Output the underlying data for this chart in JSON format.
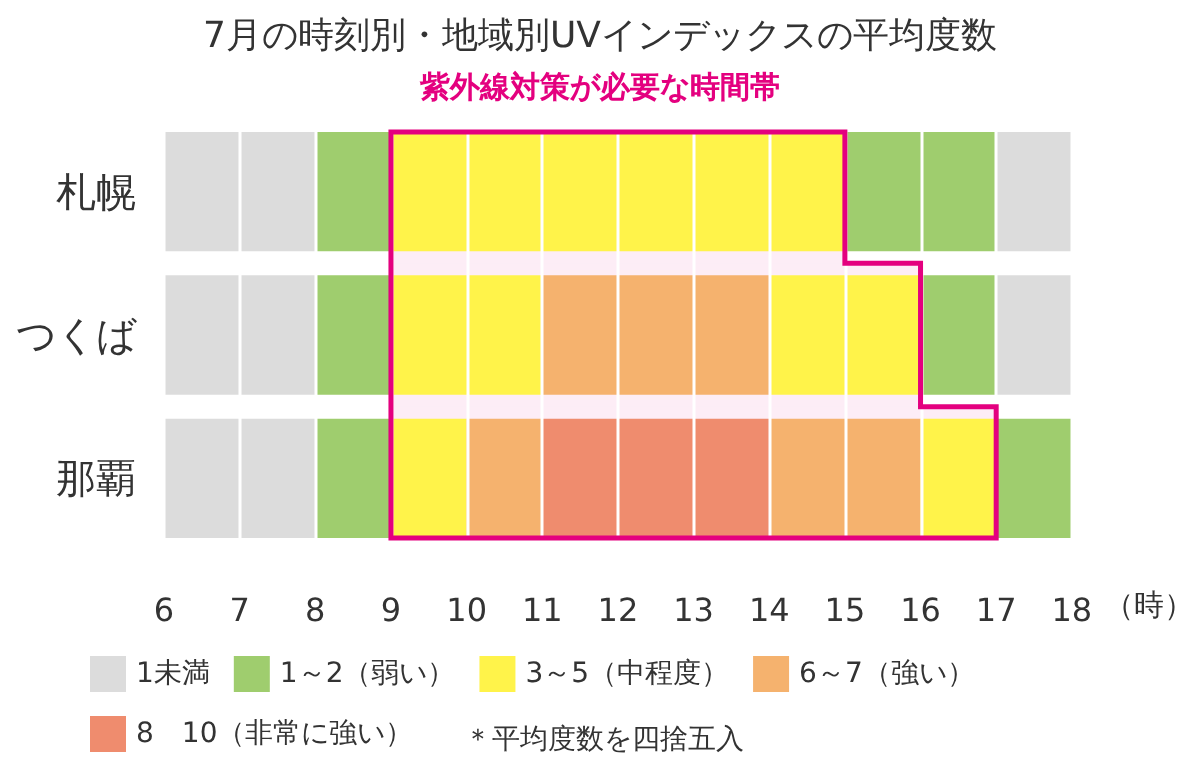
{
  "chart_data": {
    "type": "bar",
    "orientation": "horizontal",
    "title": "7月の時刻別・地域別UVインデックスの平均度数",
    "xlim": [
      6,
      18
    ],
    "xticks": [
      6,
      7,
      8,
      9,
      10,
      11,
      12,
      13,
      14,
      15,
      16,
      17,
      18
    ],
    "xlabel": "（時）",
    "categories": [
      "札幌",
      "つくば",
      "那覇"
    ],
    "series": [
      {
        "name": "1未満",
        "color": "#dcdcdc",
        "base": [
          6,
          6,
          6
        ],
        "values": [
          2,
          2,
          2
        ]
      },
      {
        "name": "1～2（弱い）",
        "color": "#9fcd6e",
        "base": [
          8,
          8,
          8
        ],
        "values": [
          1,
          1,
          1
        ]
      },
      {
        "name": "3～5（中程度）",
        "color": "#fff34a",
        "base": [
          9,
          9,
          9
        ],
        "values": [
          6,
          2,
          1
        ]
      },
      {
        "name": "6～7（強い）",
        "color": "#f5b26e",
        "base": [
          null,
          11,
          10
        ],
        "values": [
          null,
          3,
          1
        ]
      },
      {
        "name": "8　10（非常に強い）",
        "color": "#ef8c6e",
        "base": [
          null,
          null,
          11
        ],
        "values": [
          null,
          null,
          3
        ]
      },
      {
        "color": "#f5b26e",
        "base": [
          null,
          null,
          14
        ],
        "values": [
          null,
          null,
          2
        ]
      },
      {
        "color": "#fff34a",
        "base": [
          null,
          14,
          16
        ],
        "values": [
          null,
          2,
          1
        ]
      },
      {
        "color": "#9fcd6e",
        "base": [
          15,
          16,
          17
        ],
        "values": [
          2,
          1,
          1
        ]
      },
      {
        "color": "#dcdcdc",
        "base": [
          17,
          17,
          null
        ],
        "values": [
          1,
          1,
          null
        ]
      }
    ],
    "bands": [
      {
        "axis": "x",
        "from": 9,
        "to": 15,
        "label": "紫外線対策が必要な時間帯",
        "color": "#e4007f"
      },
      {
        "axis": "x",
        "from": 9,
        "to": 16,
        "color": "#e4007f"
      },
      {
        "axis": "x",
        "from": 9,
        "to": 17,
        "color": "#e4007f"
      }
    ],
    "grid": "x",
    "legend": "bottom",
    "annotations": [
      "＊平均度数を四捨五入"
    ]
  }
}
